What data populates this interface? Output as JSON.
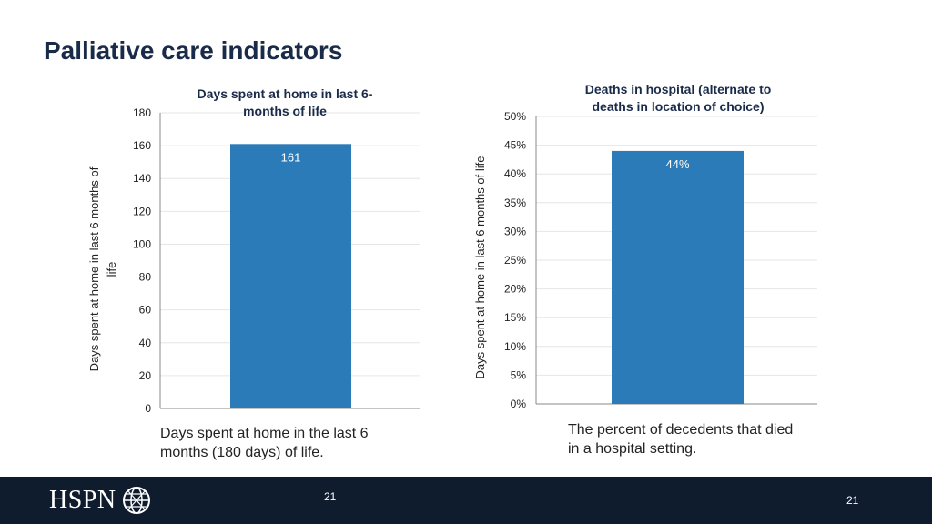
{
  "slide": {
    "title": "Palliative care indicators"
  },
  "chart_data": [
    {
      "type": "bar",
      "title_lines": [
        "Days spent at home in last 6-",
        "months of life"
      ],
      "ylabel_lines": [
        "Days spent at home in last 6 months of",
        "life"
      ],
      "categories": [
        ""
      ],
      "values": [
        161
      ],
      "data_labels": [
        "161"
      ],
      "ylim": [
        0,
        180
      ],
      "yticks": [
        0,
        20,
        40,
        60,
        80,
        100,
        120,
        140,
        160,
        180
      ],
      "ytick_labels": [
        "0",
        "20",
        "40",
        "60",
        "80",
        "100",
        "120",
        "140",
        "160",
        "180"
      ],
      "grid": true,
      "bar_color": "#2b7bb9"
    },
    {
      "type": "bar",
      "title_lines": [
        "Deaths in hospital (alternate to",
        "deaths in location of choice)"
      ],
      "ylabel_lines": [
        "Days spent at home in last 6 months of life"
      ],
      "categories": [
        ""
      ],
      "values": [
        44
      ],
      "data_labels": [
        "44%"
      ],
      "ylim": [
        0,
        50
      ],
      "yticks": [
        0,
        5,
        10,
        15,
        20,
        25,
        30,
        35,
        40,
        45,
        50
      ],
      "ytick_labels": [
        "0%",
        "5%",
        "10%",
        "15%",
        "20%",
        "25%",
        "30%",
        "35%",
        "40%",
        "45%",
        "50%"
      ],
      "grid": true,
      "bar_color": "#2b7bb9"
    }
  ],
  "captions": {
    "left": [
      "Days spent at home in the last 6",
      "months (180 days) of life."
    ],
    "right": [
      "The percent of decedents that died",
      "in a hospital setting."
    ]
  },
  "footer": {
    "logo_text": "HSPN",
    "page_number_center": "21",
    "page_number_right": "21"
  }
}
